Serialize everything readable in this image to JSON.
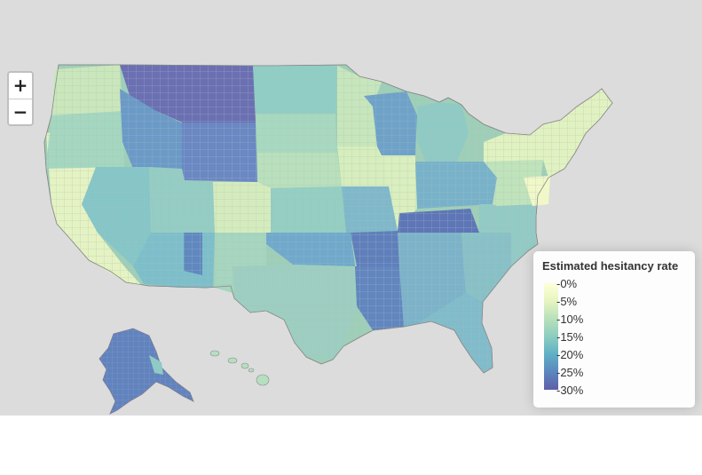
{
  "map": {
    "fill_scale": {
      "0%": "#ffffd9",
      "5%": "#e6f5c0",
      "10%": "#b7e1bb",
      "15%": "#8ccdc0",
      "20%": "#5fb0c4",
      "25%": "#5b86bf",
      "30%": "#5f5ea8"
    },
    "background_color": "#dcdcdc",
    "zoom_in_label": "+",
    "zoom_out_label": "−"
  },
  "legend": {
    "title": "Estimated hesitancy rate",
    "labels": [
      "0%",
      "5%",
      "10%",
      "15%",
      "20%",
      "25%",
      "30%"
    ],
    "colors": [
      "#ffffd9",
      "#e6f5c0",
      "#b7e1bb",
      "#8ccdc0",
      "#5fb0c4",
      "#5b86bf",
      "#5f5ea8"
    ]
  }
}
